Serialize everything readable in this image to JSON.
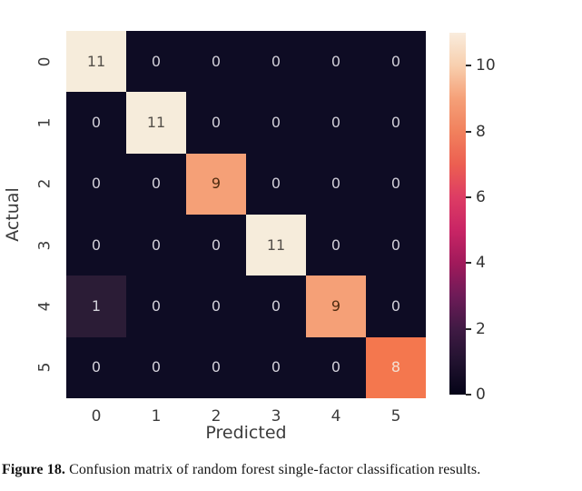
{
  "figure": {
    "caption_label": "Figure 18.",
    "caption_text": " Confusion matrix of random forest single-factor classification results."
  },
  "chart_data": {
    "type": "heatmap",
    "title": "",
    "xlabel": "Predicted",
    "ylabel": "Actual",
    "x_ticklabels": [
      "0",
      "1",
      "2",
      "3",
      "4",
      "5"
    ],
    "y_ticklabels": [
      "0",
      "1",
      "2",
      "3",
      "4",
      "5"
    ],
    "matrix": [
      [
        11,
        0,
        0,
        0,
        0,
        0
      ],
      [
        0,
        11,
        0,
        0,
        0,
        0
      ],
      [
        0,
        0,
        9,
        0,
        0,
        0
      ],
      [
        0,
        0,
        0,
        11,
        0,
        0
      ],
      [
        1,
        0,
        0,
        0,
        9,
        0
      ],
      [
        0,
        0,
        0,
        0,
        0,
        8
      ]
    ],
    "vmin": 0,
    "vmax": 11,
    "colormap": "rocket",
    "colorbar_ticks": [
      0,
      2,
      4,
      6,
      8,
      10
    ],
    "colorbar_tick_labels": [
      "0",
      "2",
      "4",
      "6",
      "8",
      "10"
    ],
    "legend_position": "right",
    "grid": false,
    "cell_colors": {
      "0": "#0e0c24",
      "1": "#2b1c36",
      "8": "#f4774e",
      "9": "#f5a077",
      "11": "#f6ecdb"
    },
    "cell_text_colors": {
      "0": "#d2d0d9",
      "1": "#d2d0d9",
      "8": "#f3e0d3",
      "9": "#4f2b10",
      "11": "#55504a"
    },
    "colorbar_gradient": [
      "#050418",
      "#21122f",
      "#401a44",
      "#6e1b58",
      "#a11a5b",
      "#c92565",
      "#dd3c64",
      "#ec5f51",
      "#f1815d",
      "#f5a078",
      "#f8cfae",
      "#f9ecdd"
    ]
  }
}
